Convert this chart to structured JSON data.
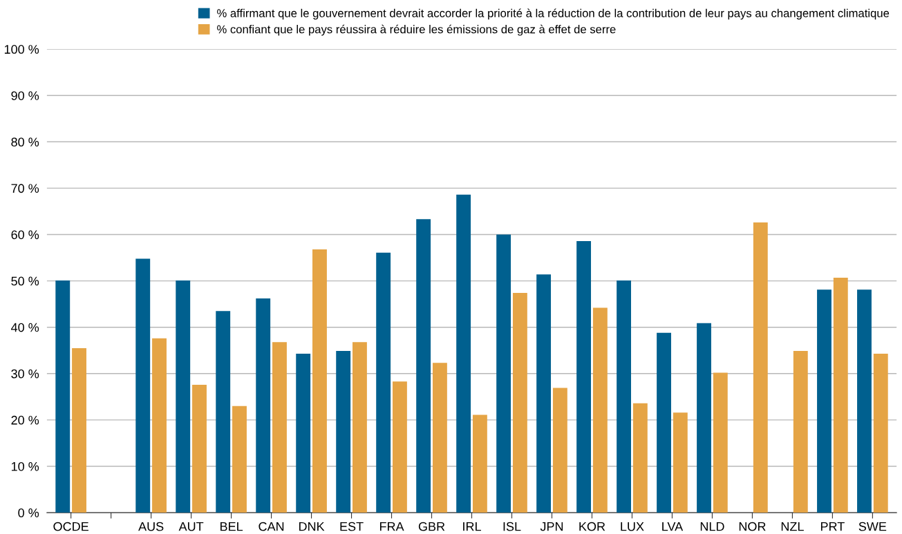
{
  "chart_data": {
    "type": "bar",
    "categories": [
      "OCDE",
      null,
      "AUS",
      "AUT",
      "BEL",
      "CAN",
      "DNK",
      "EST",
      "FRA",
      "GBR",
      "IRL",
      "ISL",
      "JPN",
      "KOR",
      "LUX",
      "LVA",
      "NLD",
      "NOR",
      "NZL",
      "PRT",
      "SWE"
    ],
    "series": [
      {
        "name": "% affirmant que le gouvernement devrait accorder la priorité à la réduction de la contribution de leur pays au changement climatique",
        "color": "#00608f",
        "values": [
          50.1,
          null,
          54.8,
          50.1,
          43.5,
          46.2,
          34.3,
          34.9,
          56.1,
          63.3,
          68.6,
          60.0,
          51.4,
          58.6,
          50.1,
          38.8,
          40.9,
          null,
          null,
          48.1,
          48.1
        ]
      },
      {
        "name": "% confiant que le pays réussira à réduire les émissions de gaz à effet de serre",
        "color": "#e5a445",
        "values": [
          35.5,
          null,
          37.6,
          27.6,
          23.0,
          36.8,
          56.8,
          36.8,
          28.3,
          32.3,
          21.1,
          47.4,
          26.9,
          44.2,
          23.6,
          21.6,
          30.2,
          62.6,
          34.9,
          50.7,
          34.3
        ]
      }
    ],
    "ylim": [
      0,
      100
    ],
    "yticks": [
      {
        "value": 0,
        "label": "0 %"
      },
      {
        "value": 10,
        "label": "10 %"
      },
      {
        "value": 20,
        "label": "20 %"
      },
      {
        "value": 30,
        "label": "30 %"
      },
      {
        "value": 40,
        "label": "40 %"
      },
      {
        "value": 50,
        "label": "50 %"
      },
      {
        "value": 60,
        "label": "60 %"
      },
      {
        "value": 70,
        "label": "70 %"
      },
      {
        "value": 80,
        "label": "80 %"
      },
      {
        "value": 90,
        "label": "90 %"
      },
      {
        "value": 100,
        "label": "100 %"
      }
    ],
    "grid": "y",
    "legend": "top right"
  }
}
